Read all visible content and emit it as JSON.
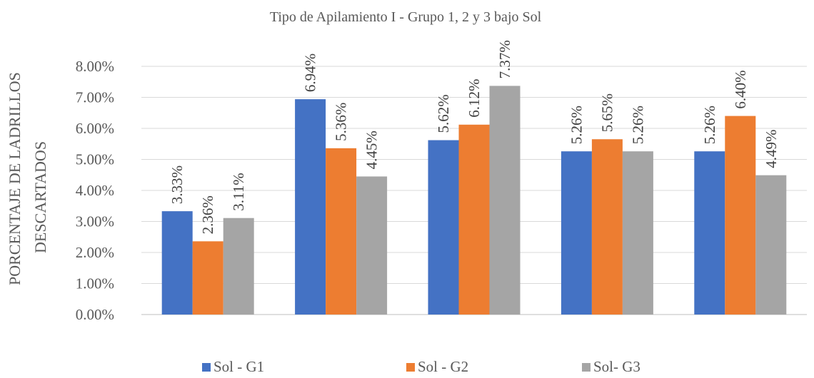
{
  "chart_data": {
    "type": "bar",
    "title": "Tipo de Apilamiento I - Grupo 1, 2 y 3  bajo Sol",
    "ylabel_lines": [
      "PORCENTAJE DE LADRILLOS",
      "DESCARTADOS"
    ],
    "xlabel": "",
    "categories": [
      "",
      "",
      "",
      "",
      ""
    ],
    "ylim": [
      0,
      8
    ],
    "yticks": [
      0,
      1,
      2,
      3,
      4,
      5,
      6,
      7,
      8
    ],
    "ytick_labels": [
      "0.00%",
      "1.00%",
      "2.00%",
      "3.00%",
      "4.00%",
      "5.00%",
      "6.00%",
      "7.00%",
      "8.00%"
    ],
    "grid": true,
    "legend_position": "bottom",
    "series": [
      {
        "name": "Sol - G1",
        "color": "#4472C4",
        "values": [
          3.33,
          6.94,
          5.62,
          5.26,
          5.26
        ],
        "labels": [
          "3.33%",
          "6.94%",
          "5.62%",
          "5.26%",
          "5.26%"
        ]
      },
      {
        "name": "Sol - G2",
        "color": "#ED7D31",
        "values": [
          2.36,
          5.36,
          6.12,
          5.65,
          6.4
        ],
        "labels": [
          "2.36%",
          "5.36%",
          "6.12%",
          "5.65%",
          "6.40%"
        ]
      },
      {
        "name": "Sol- G3",
        "color": "#A5A5A5",
        "values": [
          3.11,
          4.45,
          7.37,
          5.26,
          4.49
        ],
        "labels": [
          "3.11%",
          "4.45%",
          "7.37%",
          "5.26%",
          "4.49%"
        ]
      }
    ]
  }
}
